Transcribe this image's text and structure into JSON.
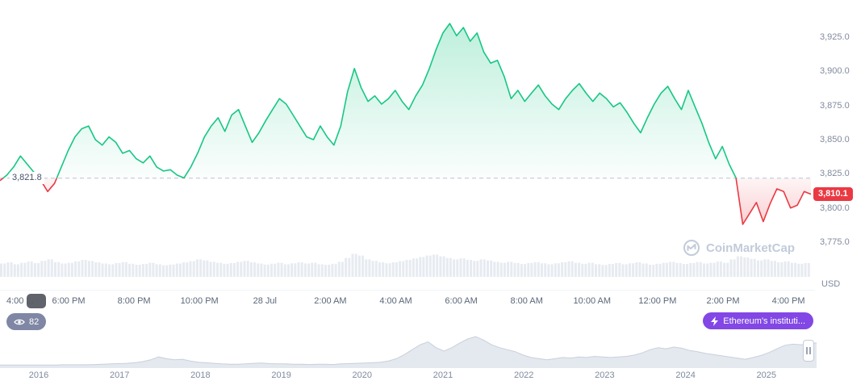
{
  "watermark": {
    "text": "CoinMarketCap"
  },
  "price_scale": {
    "unit": "USD",
    "ticks": [
      {
        "label": "3,925.0",
        "value": 3925
      },
      {
        "label": "3,900.0",
        "value": 3900
      },
      {
        "label": "3,875.0",
        "value": 3875
      },
      {
        "label": "3,850.0",
        "value": 3850
      },
      {
        "label": "3,825.0",
        "value": 3825
      },
      {
        "label": "3,800.0",
        "value": 3800
      },
      {
        "label": "3,775.0",
        "value": 3775
      }
    ]
  },
  "baseline": {
    "label": "3,821.8",
    "value": 3821.8
  },
  "current_price": {
    "label": "3,810.1",
    "value": 3810.1
  },
  "time_axis": {
    "labels": [
      "4:00 ...",
      "6:00 PM",
      "8:00 PM",
      "10:00 PM",
      "28 Jul",
      "2:00 AM",
      "4:00 AM",
      "6:00 AM",
      "8:00 AM",
      "10:00 AM",
      "12:00 PM",
      "2:00 PM",
      "4:00 PM"
    ]
  },
  "badges": {
    "watchers": {
      "count": "82"
    },
    "news": {
      "label": "Ethereum's instituti..."
    }
  },
  "colors": {
    "up": "#16c784",
    "down": "#ea3943",
    "news_badge": "#8247e5"
  },
  "chart_data": {
    "type": "area",
    "title": "",
    "xlabel": "",
    "ylabel": "USD",
    "x_tick_labels": [
      "4:00 ...",
      "6:00 PM",
      "8:00 PM",
      "10:00 PM",
      "28 Jul",
      "2:00 AM",
      "4:00 AM",
      "6:00 AM",
      "8:00 AM",
      "10:00 AM",
      "12:00 PM",
      "2:00 PM",
      "4:00 PM"
    ],
    "y_ticks": [
      3775,
      3800,
      3825,
      3850,
      3875,
      3900,
      3925
    ],
    "ylim": [
      3765,
      3945
    ],
    "baseline_previous_close": 3821.8,
    "last_price": 3810.1,
    "series": [
      {
        "name": "price",
        "values": [
          3820,
          3824,
          3830,
          3838,
          3832,
          3826,
          3820,
          3812,
          3818,
          3830,
          3842,
          3852,
          3858,
          3860,
          3850,
          3846,
          3852,
          3848,
          3840,
          3842,
          3836,
          3833,
          3838,
          3830,
          3827,
          3828,
          3824,
          3822,
          3830,
          3840,
          3852,
          3860,
          3866,
          3856,
          3868,
          3872,
          3860,
          3848,
          3855,
          3864,
          3872,
          3880,
          3876,
          3868,
          3860,
          3852,
          3850,
          3860,
          3852,
          3846,
          3860,
          3885,
          3902,
          3888,
          3878,
          3882,
          3876,
          3880,
          3886,
          3878,
          3872,
          3882,
          3890,
          3902,
          3916,
          3928,
          3935,
          3926,
          3932,
          3922,
          3928,
          3914,
          3906,
          3908,
          3896,
          3880,
          3886,
          3878,
          3884,
          3890,
          3882,
          3876,
          3872,
          3880,
          3886,
          3891,
          3884,
          3878,
          3884,
          3880,
          3874,
          3877,
          3870,
          3862,
          3855,
          3866,
          3876,
          3884,
          3889,
          3880,
          3872,
          3886,
          3874,
          3862,
          3848,
          3836,
          3845,
          3832,
          3822,
          3788,
          3796,
          3804,
          3790,
          3803,
          3814,
          3812,
          3800,
          3802,
          3812,
          3810.1
        ]
      }
    ],
    "volume_normalized": [
      0.55,
      0.6,
      0.52,
      0.58,
      0.63,
      0.57,
      0.66,
      0.72,
      0.61,
      0.55,
      0.58,
      0.64,
      0.7,
      0.66,
      0.6,
      0.55,
      0.52,
      0.57,
      0.61,
      0.54,
      0.5,
      0.53,
      0.58,
      0.52,
      0.48,
      0.51,
      0.55,
      0.6,
      0.65,
      0.72,
      0.68,
      0.62,
      0.58,
      0.54,
      0.57,
      0.62,
      0.66,
      0.6,
      0.55,
      0.51,
      0.54,
      0.58,
      0.52,
      0.56,
      0.6,
      0.55,
      0.58,
      0.52,
      0.5,
      0.54,
      0.62,
      0.78,
      0.95,
      0.88,
      0.72,
      0.66,
      0.6,
      0.56,
      0.6,
      0.65,
      0.7,
      0.76,
      0.82,
      0.88,
      0.92,
      0.85,
      0.78,
      0.72,
      0.76,
      0.7,
      0.66,
      0.72,
      0.68,
      0.62,
      0.58,
      0.62,
      0.57,
      0.53,
      0.57,
      0.61,
      0.56,
      0.52,
      0.56,
      0.6,
      0.64,
      0.58,
      0.54,
      0.58,
      0.52,
      0.49,
      0.53,
      0.57,
      0.52,
      0.56,
      0.6,
      0.55,
      0.5,
      0.54,
      0.58,
      0.62,
      0.57,
      0.53,
      0.57,
      0.61,
      0.55,
      0.58,
      0.63,
      0.58,
      0.72,
      0.85,
      0.8,
      0.74,
      0.68,
      0.72,
      0.66,
      0.6,
      0.64,
      0.58,
      0.54,
      0.57
    ],
    "navigator": {
      "type": "area",
      "years": [
        "2016",
        "2017",
        "2018",
        "2019",
        "2020",
        "2021",
        "2022",
        "2023",
        "2024",
        "2025"
      ],
      "values": [
        0.02,
        0.02,
        0.02,
        0.02,
        0.02,
        0.02,
        0.02,
        0.02,
        0.03,
        0.03,
        0.03,
        0.03,
        0.04,
        0.05,
        0.06,
        0.07,
        0.08,
        0.1,
        0.14,
        0.2,
        0.3,
        0.24,
        0.2,
        0.22,
        0.16,
        0.12,
        0.1,
        0.08,
        0.06,
        0.05,
        0.05,
        0.06,
        0.08,
        0.09,
        0.07,
        0.06,
        0.06,
        0.05,
        0.05,
        0.04,
        0.05,
        0.05,
        0.04,
        0.06,
        0.07,
        0.08,
        0.09,
        0.1,
        0.12,
        0.16,
        0.24,
        0.38,
        0.55,
        0.72,
        0.82,
        0.62,
        0.5,
        0.62,
        0.78,
        0.92,
        1.0,
        0.88,
        0.72,
        0.62,
        0.55,
        0.48,
        0.36,
        0.28,
        0.24,
        0.2,
        0.24,
        0.28,
        0.26,
        0.3,
        0.28,
        0.32,
        0.3,
        0.28,
        0.3,
        0.32,
        0.36,
        0.44,
        0.55,
        0.62,
        0.58,
        0.64,
        0.6,
        0.52,
        0.48,
        0.42,
        0.38,
        0.34,
        0.3,
        0.26,
        0.22,
        0.28,
        0.35,
        0.45,
        0.58,
        0.7,
        0.74,
        0.72,
        0.75,
        0.78
      ]
    }
  }
}
